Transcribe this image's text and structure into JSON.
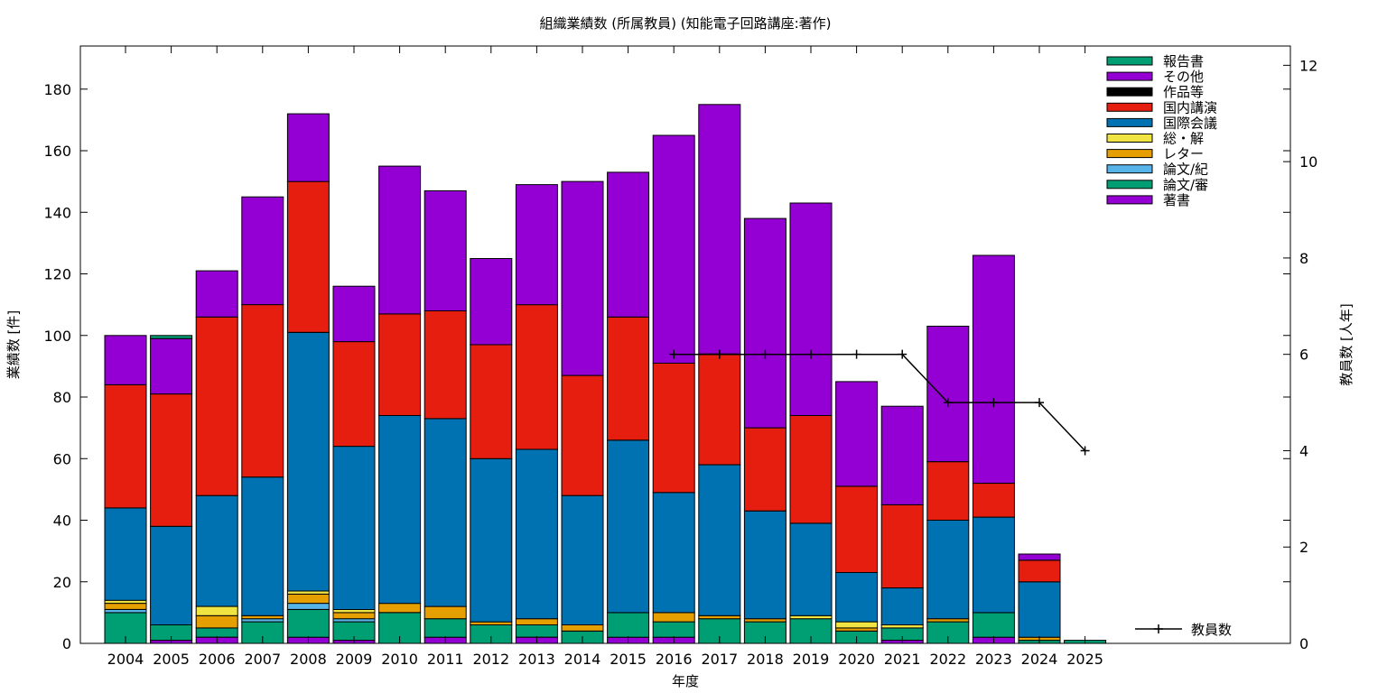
{
  "chart_data": {
    "type": "bar",
    "stacked": true,
    "title": "組織業績数 (所属教員) (知能電子回路講座:著作)",
    "xlabel": "年度",
    "ylabel": "業績数 [件]",
    "y2label": "教員数 [人年]",
    "ylim": [
      0,
      194
    ],
    "y2lim": [
      0,
      12.4
    ],
    "yticks": [
      0,
      20,
      40,
      60,
      80,
      100,
      120,
      140,
      160,
      180
    ],
    "y2ticks": [
      0,
      2,
      4,
      6,
      8,
      10,
      12
    ],
    "grid": false,
    "legend_position": "top-right",
    "categories": [
      "2004",
      "2005",
      "2006",
      "2007",
      "2008",
      "2009",
      "2010",
      "2011",
      "2012",
      "2013",
      "2014",
      "2015",
      "2016",
      "2017",
      "2018",
      "2019",
      "2020",
      "2021",
      "2022",
      "2023",
      "2024",
      "2025"
    ],
    "series": [
      {
        "name": "著書",
        "color": "#9400d3",
        "values": [
          0,
          1,
          2,
          0,
          2,
          1,
          0,
          2,
          0,
          2,
          0,
          2,
          2,
          0,
          0,
          0,
          0,
          1,
          0,
          2,
          0,
          0
        ]
      },
      {
        "name": "論文/審",
        "color": "#009e73",
        "values": [
          10,
          5,
          3,
          7,
          9,
          6,
          10,
          6,
          6,
          4,
          4,
          8,
          5,
          8,
          7,
          8,
          4,
          4,
          7,
          8,
          1,
          1
        ]
      },
      {
        "name": "論文/紀",
        "color": "#56b4e9",
        "values": [
          1,
          0,
          0,
          1,
          2,
          1,
          0,
          0,
          0,
          0,
          0,
          0,
          0,
          0,
          0,
          0,
          0,
          0,
          0,
          0,
          0,
          0
        ]
      },
      {
        "name": "レター",
        "color": "#e69f00",
        "values": [
          2,
          0,
          4,
          1,
          3,
          2,
          3,
          4,
          1,
          2,
          2,
          0,
          3,
          1,
          1,
          0,
          1,
          0,
          1,
          0,
          1,
          0
        ]
      },
      {
        "name": "総・解",
        "color": "#f0e442",
        "values": [
          1,
          0,
          3,
          0,
          1,
          1,
          0,
          0,
          0,
          0,
          0,
          0,
          0,
          0,
          0,
          1,
          2,
          1,
          0,
          0,
          0,
          0
        ]
      },
      {
        "name": "国際会議",
        "color": "#0072b2",
        "values": [
          30,
          32,
          36,
          45,
          84,
          53,
          61,
          61,
          53,
          55,
          42,
          56,
          39,
          49,
          35,
          30,
          16,
          12,
          32,
          31,
          18,
          0
        ]
      },
      {
        "name": "国内講演",
        "color": "#e51e10",
        "values": [
          40,
          43,
          58,
          56,
          49,
          34,
          33,
          35,
          37,
          47,
          39,
          40,
          42,
          36,
          27,
          35,
          28,
          27,
          19,
          11,
          7,
          0
        ]
      },
      {
        "name": "作品等",
        "color": "#000000",
        "values": [
          0,
          0,
          0,
          0,
          0,
          0,
          0,
          0,
          0,
          0,
          0,
          0,
          0,
          0,
          0,
          0,
          0,
          0,
          0,
          0,
          0,
          0
        ]
      },
      {
        "name": "その他",
        "color": "#9400d3",
        "values": [
          16,
          18,
          15,
          35,
          22,
          18,
          48,
          39,
          28,
          39,
          63,
          47,
          74,
          81,
          68,
          69,
          34,
          32,
          44,
          74,
          2,
          0
        ]
      },
      {
        "name": "報告書",
        "color": "#009e73",
        "values": [
          0,
          1,
          0,
          0,
          0,
          0,
          0,
          0,
          0,
          0,
          0,
          0,
          0,
          0,
          0,
          0,
          0,
          0,
          0,
          0,
          0,
          0
        ]
      }
    ],
    "line_series": {
      "name": "教員数",
      "axis": "y2",
      "color": "#000000",
      "points": [
        {
          "x": "2016",
          "y": 6
        },
        {
          "x": "2017",
          "y": 6
        },
        {
          "x": "2018",
          "y": 6
        },
        {
          "x": "2019",
          "y": 6
        },
        {
          "x": "2020",
          "y": 6
        },
        {
          "x": "2021",
          "y": 6
        },
        {
          "x": "2022",
          "y": 5
        },
        {
          "x": "2023",
          "y": 5
        },
        {
          "x": "2024",
          "y": 5
        },
        {
          "x": "2025",
          "y": 4
        }
      ]
    },
    "legend_order": [
      "報告書",
      "その他",
      "作品等",
      "国内講演",
      "国際会議",
      "総・解",
      "レター",
      "論文/紀",
      "論文/審",
      "著書"
    ]
  }
}
